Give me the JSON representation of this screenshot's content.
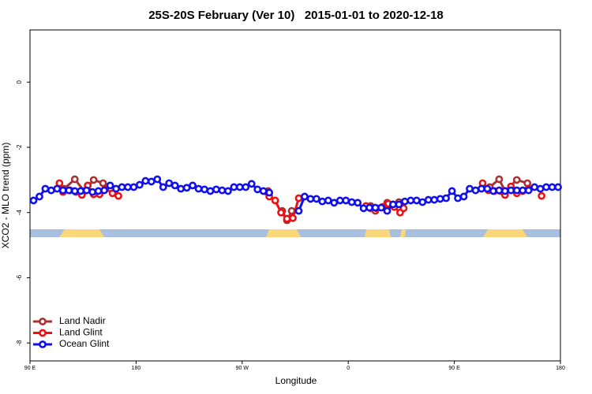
{
  "chart_data": {
    "type": "line",
    "title": "25S-20S February (Ver 10)   2015-01-01 to 2020-12-18",
    "x_label": "Longitude",
    "y_label": "XCO2 - MLO trend (ppm)",
    "xlim": [
      90,
      540
    ],
    "xticks": [
      {
        "value": 90,
        "label": "90 E"
      },
      {
        "value": 180,
        "label": "180"
      },
      {
        "value": 270,
        "label": "90 W"
      },
      {
        "value": 360,
        "label": "0"
      },
      {
        "value": 450,
        "label": "90 E"
      },
      {
        "value": 540,
        "label": "180"
      }
    ],
    "ylim": [
      -8.55,
      1.6
    ],
    "yticks": [
      0,
      -2,
      -4,
      -6,
      -8
    ],
    "legend": "bottomleft",
    "series": [
      {
        "name": "Land Nadir",
        "color": "#a83232",
        "x": [
          119,
          128,
          136,
          144,
          152,
          292,
          304,
          308,
          312,
          379,
          383,
          393,
          403,
          480,
          488,
          493,
          503,
          512
        ],
        "values": [
          -3.27,
          -2.98,
          -3.34,
          -3.0,
          -3.1,
          -3.34,
          -3.95,
          -4.24,
          -3.95,
          -3.8,
          -3.95,
          -3.7,
          -3.68,
          -3.22,
          -2.98,
          -3.34,
          -3.0,
          -3.1
        ]
      },
      {
        "name": "Land Glint",
        "color": "#ee1111",
        "x": [
          115,
          118,
          124,
          129,
          134,
          139,
          144,
          149,
          154,
          160,
          165,
          291,
          293,
          298,
          303,
          308,
          313,
          318,
          375,
          379,
          384,
          389,
          394,
          399,
          404,
          407,
          474,
          479,
          484,
          489,
          493,
          498,
          503,
          508,
          513,
          524
        ],
        "values": [
          -3.1,
          -3.37,
          -3.32,
          -3.37,
          -3.46,
          -3.17,
          -3.44,
          -3.44,
          -3.27,
          -3.41,
          -3.49,
          -3.37,
          -3.51,
          -3.63,
          -4.0,
          -4.19,
          -4.17,
          -3.56,
          -3.8,
          -3.87,
          -3.87,
          -3.83,
          -3.73,
          -3.83,
          -4.0,
          -3.87,
          -3.1,
          -3.32,
          -3.34,
          -3.34,
          -3.46,
          -3.2,
          -3.41,
          -3.34,
          -3.27,
          -3.49
        ]
      },
      {
        "name": "Ocean Glint",
        "color": "#1010ee",
        "x": [
          93,
          98,
          103,
          108,
          113,
          118,
          123,
          128,
          133,
          138,
          143,
          148,
          153,
          158,
          163,
          168,
          173,
          178,
          183,
          188,
          193,
          198,
          203,
          208,
          213,
          218,
          223,
          228,
          233,
          238,
          243,
          248,
          253,
          258,
          263,
          268,
          273,
          278,
          283,
          288,
          293,
          298,
          303,
          308,
          313,
          318,
          323,
          328,
          333,
          338,
          343,
          348,
          353,
          358,
          363,
          368,
          373,
          378,
          383,
          388,
          393,
          398,
          403,
          408,
          413,
          418,
          423,
          428,
          433,
          438,
          443,
          448,
          453,
          458,
          463,
          468,
          473,
          478,
          483,
          488,
          493,
          498,
          503,
          508,
          513,
          518,
          523,
          528,
          533,
          538
        ],
        "values": [
          -3.63,
          -3.51,
          -3.27,
          -3.32,
          -3.27,
          -3.32,
          -3.32,
          -3.34,
          -3.34,
          -3.32,
          -3.37,
          -3.34,
          -3.32,
          -3.17,
          -3.27,
          -3.22,
          -3.22,
          -3.22,
          -3.15,
          -3.03,
          -3.05,
          -2.98,
          -3.22,
          -3.1,
          -3.17,
          -3.27,
          -3.24,
          -3.17,
          -3.27,
          -3.29,
          -3.34,
          -3.29,
          -3.32,
          -3.34,
          -3.22,
          -3.22,
          -3.22,
          -3.12,
          -3.29,
          -3.34,
          -3.39,
          null,
          null,
          null,
          null,
          -3.95,
          -3.51,
          -3.58,
          -3.58,
          -3.66,
          -3.63,
          -3.7,
          -3.63,
          -3.63,
          -3.68,
          -3.7,
          -3.87,
          -3.85,
          -3.85,
          -3.85,
          -3.95,
          -3.75,
          -3.75,
          -3.66,
          -3.63,
          -3.63,
          -3.68,
          -3.61,
          -3.61,
          -3.58,
          -3.56,
          -3.34,
          -3.56,
          -3.51,
          -3.27,
          -3.32,
          -3.27,
          -3.27,
          -3.34,
          -3.32,
          -3.34,
          -3.32,
          -3.32,
          -3.32,
          -3.32,
          -3.22,
          -3.27,
          -3.22,
          -3.22,
          -3.22
        ]
      }
    ]
  }
}
